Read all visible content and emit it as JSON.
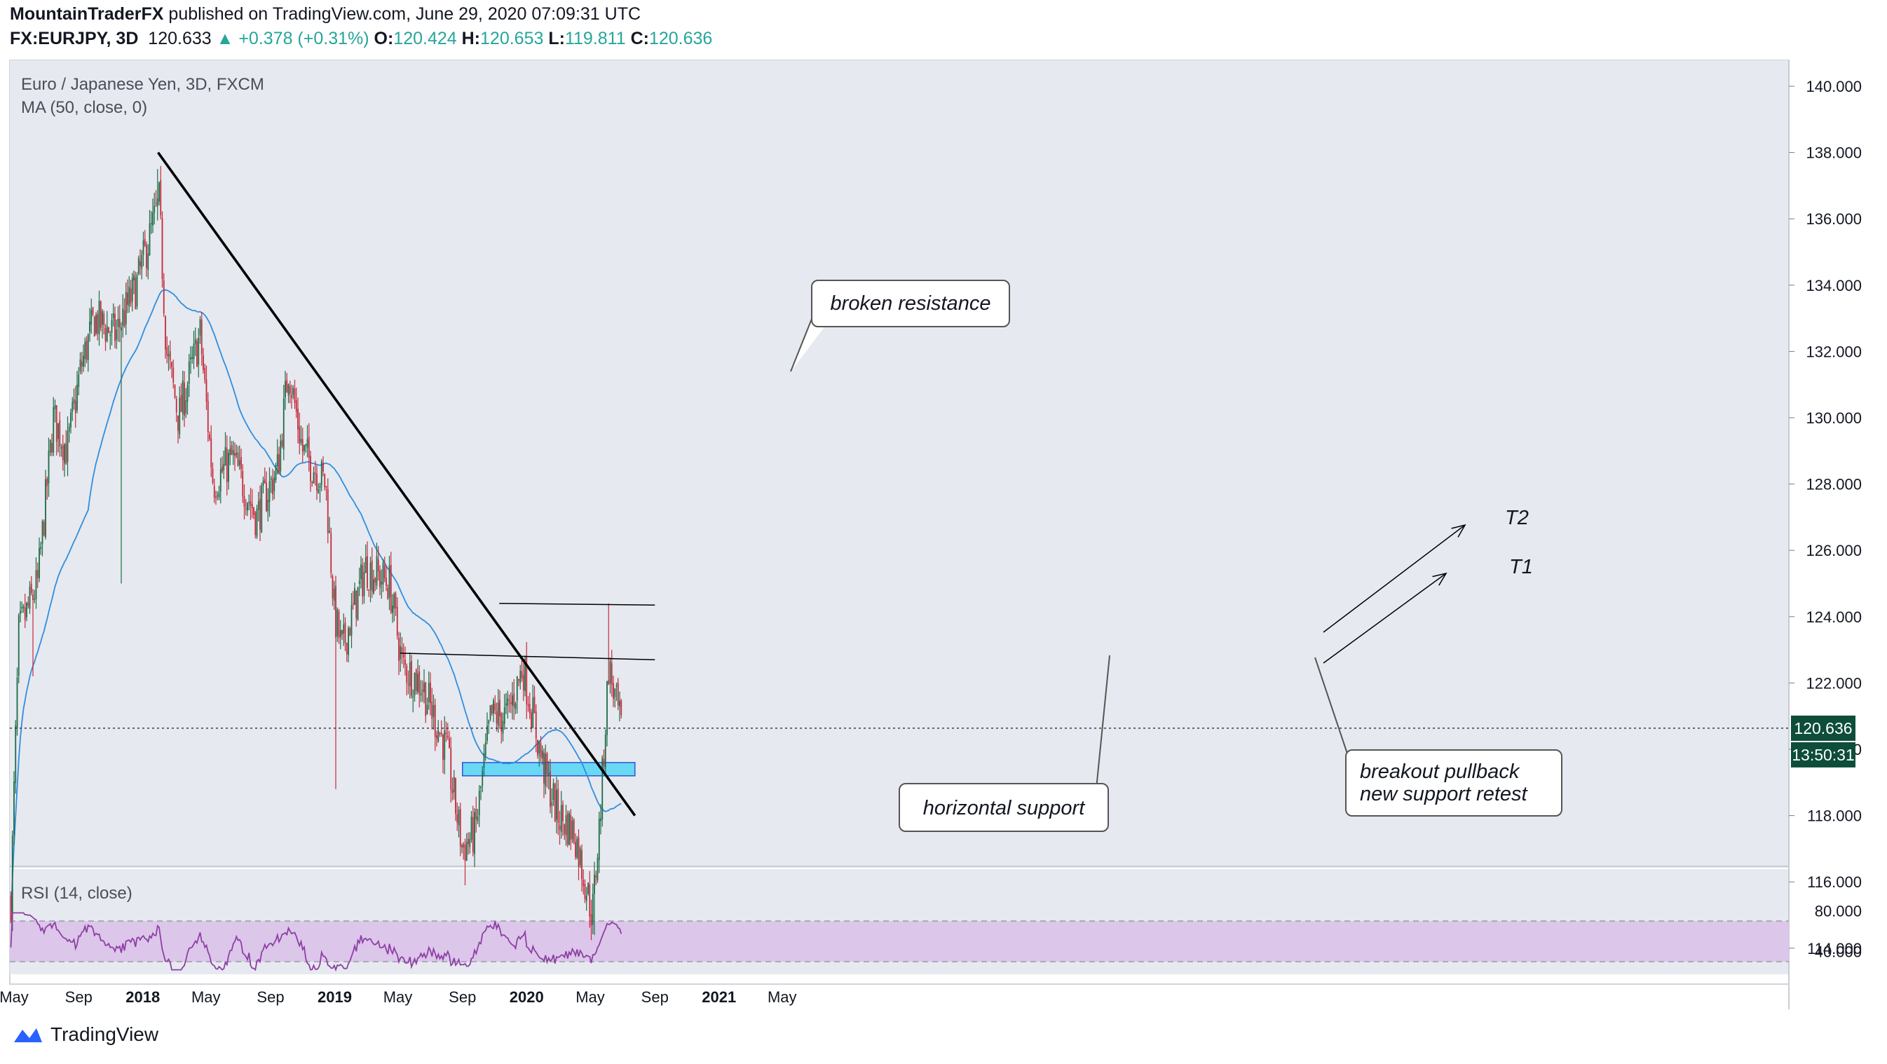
{
  "header": {
    "author": "MountainTraderFX",
    "published_text": "published on TradingView.com, June 29, 2020 07:09:31 UTC",
    "symbol": "FX:EURJPY, 3D",
    "last": "120.633",
    "change": "▲ +0.378 (+0.31%)",
    "o_label": "O:",
    "o_value": "120.424",
    "h_label": "H:",
    "h_value": "120.653",
    "l_label": "L:",
    "l_value": "119.811",
    "c_label": "C:",
    "c_value": "120.636"
  },
  "legend": {
    "title": "Euro / Japanese Yen, 3D, FXCM",
    "ma": "MA (50, close, 0)",
    "rsi": "RSI (14, close)"
  },
  "price_label": "120.636",
  "countdown_label": "13:50:31",
  "annotations": {
    "broken_resistance": "broken resistance",
    "horizontal_support": "horizontal support",
    "pullback_line1": "breakout pullback",
    "pullback_line2": "new support retest",
    "t1": "T1",
    "t2": "T2"
  },
  "footer": {
    "brand": "TradingView"
  },
  "colors": {
    "bull": "#1e6b47",
    "bear": "#c42b3c",
    "ma": "#2f8ee0",
    "rsi": "#8e3fa5",
    "support_zone": "#69d8f5",
    "price_badge": "#0d4d3a"
  },
  "chart_data": {
    "type": "candlestick",
    "y_axis": {
      "min": 112,
      "max": 140,
      "ticks": [
        "140.000",
        "138.000",
        "136.000",
        "134.000",
        "132.000",
        "130.000",
        "128.000",
        "126.000",
        "124.000",
        "122.000",
        "120.000",
        "118.000",
        "116.000",
        "114.000"
      ]
    },
    "rsi_axis": {
      "ticks": [
        "80.000",
        "40.000"
      ],
      "upper_band": 70,
      "lower_band": 30
    },
    "x_ticks": [
      "May",
      "Sep",
      "2018",
      "May",
      "Sep",
      "2019",
      "May",
      "Sep",
      "2020",
      "May",
      "Sep",
      "2021",
      "May"
    ],
    "price_anchors": [
      [
        "2017-04-25",
        115.5
      ],
      [
        "2017-05-10",
        123.5
      ],
      [
        "2017-06-15",
        125.0
      ],
      [
        "2017-07-15",
        130.0
      ],
      [
        "2017-08-10",
        129.0
      ],
      [
        "2017-09-05",
        131.5
      ],
      [
        "2017-10-01",
        133.0
      ],
      [
        "2017-11-10",
        132.5
      ],
      [
        "2017-12-20",
        134.0
      ],
      [
        "2018-02-01",
        136.5
      ],
      [
        "2018-02-15",
        132.0
      ],
      [
        "2018-03-10",
        130.0
      ],
      [
        "2018-04-20",
        132.5
      ],
      [
        "2018-05-15",
        128.0
      ],
      [
        "2018-06-20",
        128.8
      ],
      [
        "2018-08-05",
        127.0
      ],
      [
        "2018-09-15",
        128.5
      ],
      [
        "2018-10-05",
        131.5
      ],
      [
        "2018-11-01",
        129.0
      ],
      [
        "2018-12-15",
        128.0
      ],
      [
        "2019-01-01",
        124.0
      ],
      [
        "2019-01-15",
        123.0
      ],
      [
        "2019-03-01",
        125.5
      ],
      [
        "2019-04-15",
        125.0
      ],
      [
        "2019-05-10",
        122.5
      ],
      [
        "2019-06-15",
        122.0
      ],
      [
        "2019-08-01",
        120.0
      ],
      [
        "2019-09-01",
        117.0
      ],
      [
        "2019-09-25",
        117.5
      ],
      [
        "2019-10-25",
        121.0
      ],
      [
        "2019-11-25",
        121.0
      ],
      [
        "2019-12-25",
        122.5
      ],
      [
        "2020-02-01",
        119.5
      ],
      [
        "2020-03-01",
        118.0
      ],
      [
        "2020-04-01",
        117.5
      ],
      [
        "2020-05-05",
        115.0
      ],
      [
        "2020-05-20",
        118.0
      ],
      [
        "2020-06-05",
        122.5
      ],
      [
        "2020-06-29",
        120.6
      ]
    ],
    "spike_lows": [
      [
        "2017-06-05",
        122.2
      ],
      [
        "2017-11-20",
        125.0
      ],
      [
        "2019-01-03",
        118.8
      ],
      [
        "2019-09-05",
        115.9
      ],
      [
        "2020-05-08",
        114.4
      ]
    ],
    "spike_highs": [
      [
        "2018-01-28",
        137.5
      ],
      [
        "2020-06-05",
        124.4
      ]
    ],
    "support_zone": {
      "from": "2019-09-01",
      "to": "2020-07-25",
      "low": 119.2,
      "high": 119.6
    },
    "trendline": {
      "from": [
        "2018-01-30",
        138.0
      ],
      "to": [
        "2020-07-25",
        118.0
      ]
    },
    "t1_line": {
      "from": [
        "2019-05-05",
        122.9
      ],
      "to": [
        "2020-09-01",
        122.7
      ]
    },
    "t2_line": {
      "from": [
        "2019-11-10",
        124.4
      ],
      "to": [
        "2020-09-01",
        124.35
      ]
    },
    "last_price": 120.636
  }
}
